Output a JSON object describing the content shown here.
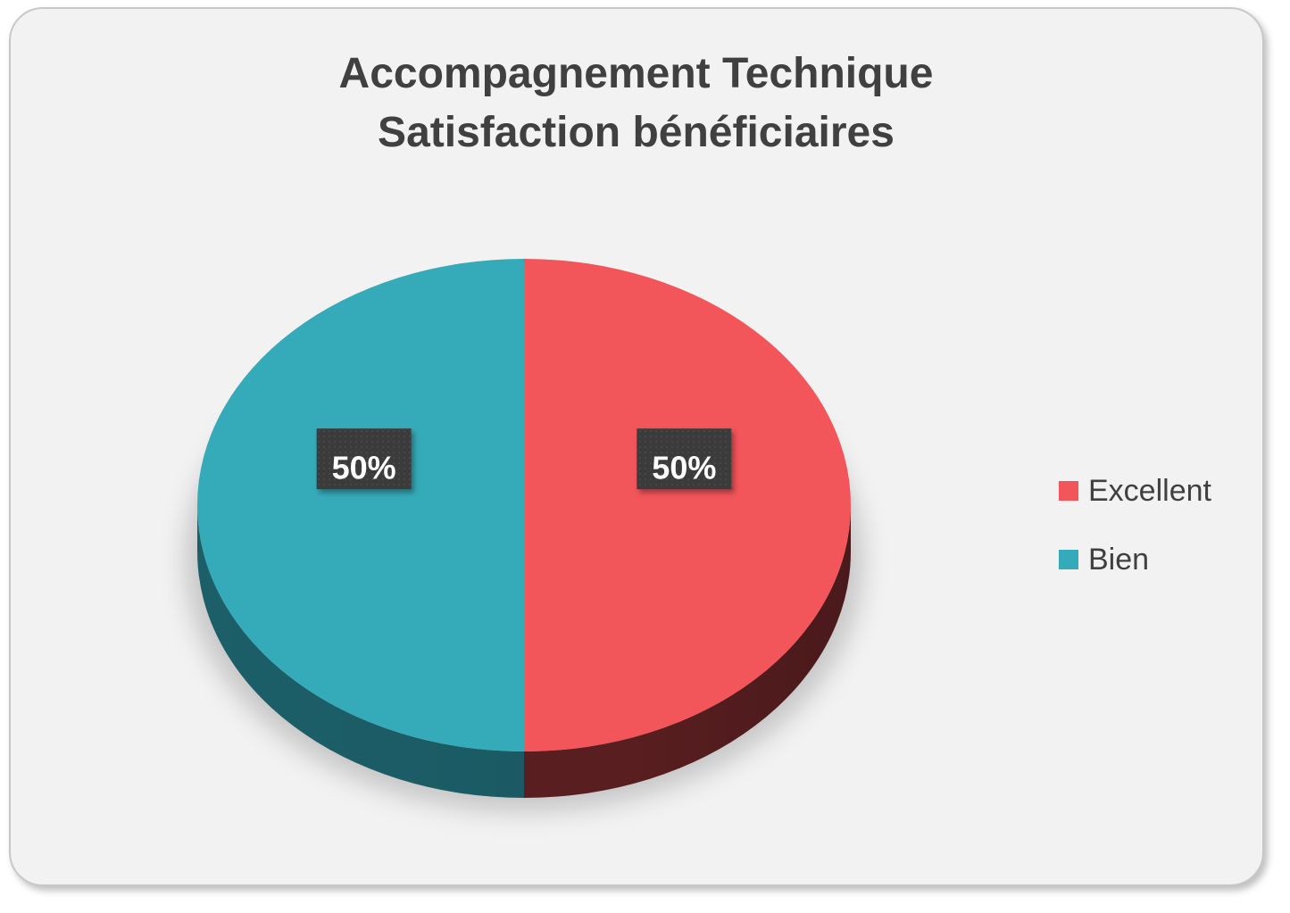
{
  "chart_data": {
    "type": "pie",
    "title": [
      "Accompagnement Technique",
      "Satisfaction bénéficiaires"
    ],
    "slices": [
      {
        "label": "Excellent",
        "value": 50,
        "display": "50%",
        "color": "#f2555a",
        "side_color": "#5e2022"
      },
      {
        "label": "Bien",
        "value": 50,
        "display": "50%",
        "color": "#35aab8",
        "side_color": "#1c5f69"
      }
    ],
    "legend_position": "right",
    "data_labels": "percent",
    "style": "3d"
  }
}
